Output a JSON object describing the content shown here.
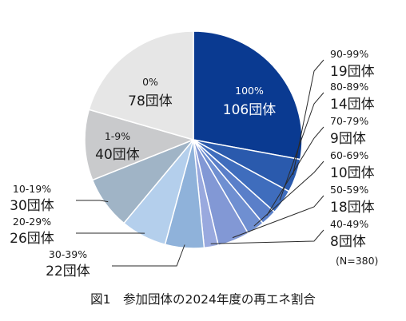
{
  "caption": "図1　参加団体の2024年度の再エネ割合",
  "chart_data": {
    "type": "pie",
    "title": "",
    "note": "(N=380)",
    "total": 380,
    "slices": [
      {
        "range": "100%",
        "count": 106,
        "count_label": "106団体",
        "color": "#0a3a91"
      },
      {
        "range": "90-99%",
        "count": 19,
        "count_label": "19団体",
        "color": "#2a5aad"
      },
      {
        "range": "80-89%",
        "count": 14,
        "count_label": "14団体",
        "color": "#3f6dbd"
      },
      {
        "range": "70-79%",
        "count": 9,
        "count_label": "9団体",
        "color": "#5a7fc9"
      },
      {
        "range": "60-69%",
        "count": 10,
        "count_label": "10団体",
        "color": "#6f8fd1"
      },
      {
        "range": "50-59%",
        "count": 18,
        "count_label": "18団体",
        "color": "#8298d5"
      },
      {
        "range": "40-49%",
        "count": 8,
        "count_label": "8団体",
        "color": "#99a9de"
      },
      {
        "range": "30-39%",
        "count": 22,
        "count_label": "22団体",
        "color": "#8fb2da"
      },
      {
        "range": "20-29%",
        "count": 26,
        "count_label": "26団体",
        "color": "#b4cfec"
      },
      {
        "range": "10-19%",
        "count": 30,
        "count_label": "30団体",
        "color": "#a0b4c6"
      },
      {
        "range": "1-9%",
        "count": 40,
        "count_label": "40団体",
        "color": "#c9cacc"
      },
      {
        "range": "0%",
        "count": 78,
        "count_label": "78団体",
        "color": "#e6e6e6"
      }
    ]
  }
}
